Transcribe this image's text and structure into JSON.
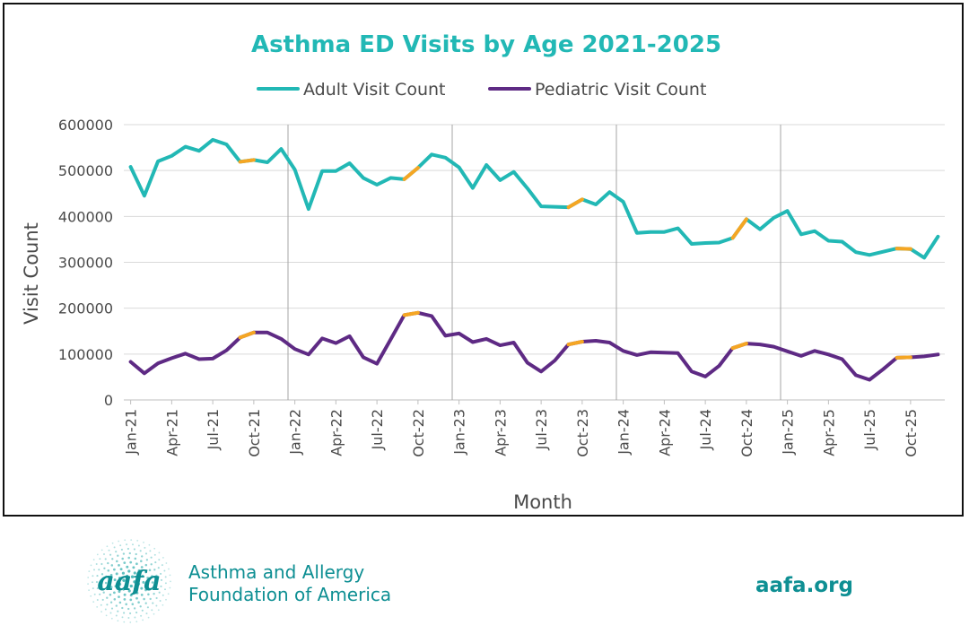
{
  "chart_data": {
    "type": "line",
    "title": "Asthma ED Visits by Age 2021-2025",
    "xlabel": "Month",
    "ylabel": "Visit Count",
    "ylim": [
      0,
      600000
    ],
    "yticks": [
      0,
      100000,
      200000,
      300000,
      400000,
      500000,
      600000
    ],
    "legend_position": "top-center",
    "grid": true,
    "x": [
      "Jan-21",
      "Feb-21",
      "Mar-21",
      "Apr-21",
      "May-21",
      "Jun-21",
      "Jul-21",
      "Aug-21",
      "Sep-21",
      "Oct-21",
      "Nov-21",
      "Dec-21",
      "Jan-22",
      "Feb-22",
      "Mar-22",
      "Apr-22",
      "May-22",
      "Jun-22",
      "Jul-22",
      "Aug-22",
      "Sep-22",
      "Oct-22",
      "Nov-22",
      "Dec-22",
      "Jan-23",
      "Feb-23",
      "Mar-23",
      "Apr-23",
      "May-23",
      "Jun-23",
      "Jul-23",
      "Aug-23",
      "Sep-23",
      "Oct-23",
      "Nov-23",
      "Dec-23",
      "Jan-24",
      "Feb-24",
      "Mar-24",
      "Apr-24",
      "May-24",
      "Jun-24",
      "Jul-24",
      "Aug-24",
      "Sep-24",
      "Oct-24",
      "Nov-24",
      "Dec-24",
      "Jan-25",
      "Feb-25",
      "Mar-25",
      "Apr-25",
      "May-25",
      "Jun-25",
      "Jul-25",
      "Aug-25",
      "Sep-25",
      "Oct-25",
      "Nov-25",
      "Dec-25"
    ],
    "xtick_labels": [
      "Jan-21",
      "Apr-21",
      "Jul-21",
      "Oct-21",
      "Jan-22",
      "Apr-22",
      "Jul-22",
      "Oct-22",
      "Jan-23",
      "Apr-23",
      "Jul-23",
      "Oct-23",
      "Jan-24",
      "Apr-24",
      "Jul-24",
      "Oct-24",
      "Jan-25",
      "Apr-25",
      "Jul-25",
      "Oct-25"
    ],
    "year_dividers": [
      "Dec-21",
      "Dec-22",
      "Dec-23",
      "Dec-24"
    ],
    "series": [
      {
        "name": "Adult Visit Count",
        "color": "#22b8b5",
        "values": [
          508000,
          445000,
          520000,
          532000,
          552000,
          543000,
          567000,
          557000,
          519000,
          523000,
          518000,
          547000,
          502000,
          416000,
          499000,
          499000,
          516000,
          484000,
          469000,
          484000,
          481000,
          506000,
          535000,
          528000,
          507000,
          462000,
          512000,
          479000,
          497000,
          461000,
          422000,
          421000,
          420000,
          437000,
          426000,
          453000,
          432000,
          364000,
          366000,
          366000,
          374000,
          340000,
          342000,
          343000,
          353000,
          394000,
          372000,
          397000,
          412000,
          361000,
          368000,
          347000,
          345000,
          322000,
          316000,
          323000,
          330000,
          329000,
          310000,
          356000
        ]
      },
      {
        "name": "Pediatric Visit Count",
        "color": "#5e2a84",
        "values": [
          83000,
          58000,
          80000,
          91000,
          101000,
          89000,
          90000,
          108000,
          136000,
          147000,
          147000,
          133000,
          111000,
          99000,
          134000,
          124000,
          139000,
          93000,
          79000,
          132000,
          185000,
          190000,
          183000,
          140000,
          145000,
          126000,
          133000,
          119000,
          125000,
          81000,
          62000,
          86000,
          121000,
          127000,
          129000,
          125000,
          107000,
          98000,
          104000,
          103000,
          102000,
          62000,
          51000,
          74000,
          113000,
          123000,
          121000,
          116000,
          106000,
          96000,
          107000,
          99000,
          89000,
          54000,
          44000,
          67000,
          92000,
          93000,
          95000,
          99000
        ]
      }
    ],
    "highlight_color": "#f5a623",
    "highlight_segments": [
      {
        "series": 0,
        "from": "Sep-21",
        "to": "Oct-21"
      },
      {
        "series": 0,
        "from": "Sep-22",
        "to": "Oct-22"
      },
      {
        "series": 0,
        "from": "Sep-23",
        "to": "Oct-23"
      },
      {
        "series": 0,
        "from": "Sep-24",
        "to": "Oct-24"
      },
      {
        "series": 0,
        "from": "Sep-25",
        "to": "Oct-25"
      },
      {
        "series": 1,
        "from": "Sep-21",
        "to": "Oct-21"
      },
      {
        "series": 1,
        "from": "Sep-22",
        "to": "Oct-22"
      },
      {
        "series": 1,
        "from": "Sep-23",
        "to": "Oct-23"
      },
      {
        "series": 1,
        "from": "Sep-24",
        "to": "Oct-24"
      },
      {
        "series": 1,
        "from": "Sep-25",
        "to": "Oct-25"
      }
    ],
    "title_color": "#22b8b5"
  },
  "footer": {
    "org_name_line1": "Asthma and Allergy",
    "org_name_line2": "Foundation of America",
    "logo_text": "aafa",
    "website": "aafa.org"
  },
  "colors": {
    "brand_teal": "#0e8f93",
    "logo_dots": "#3fb3b3"
  }
}
